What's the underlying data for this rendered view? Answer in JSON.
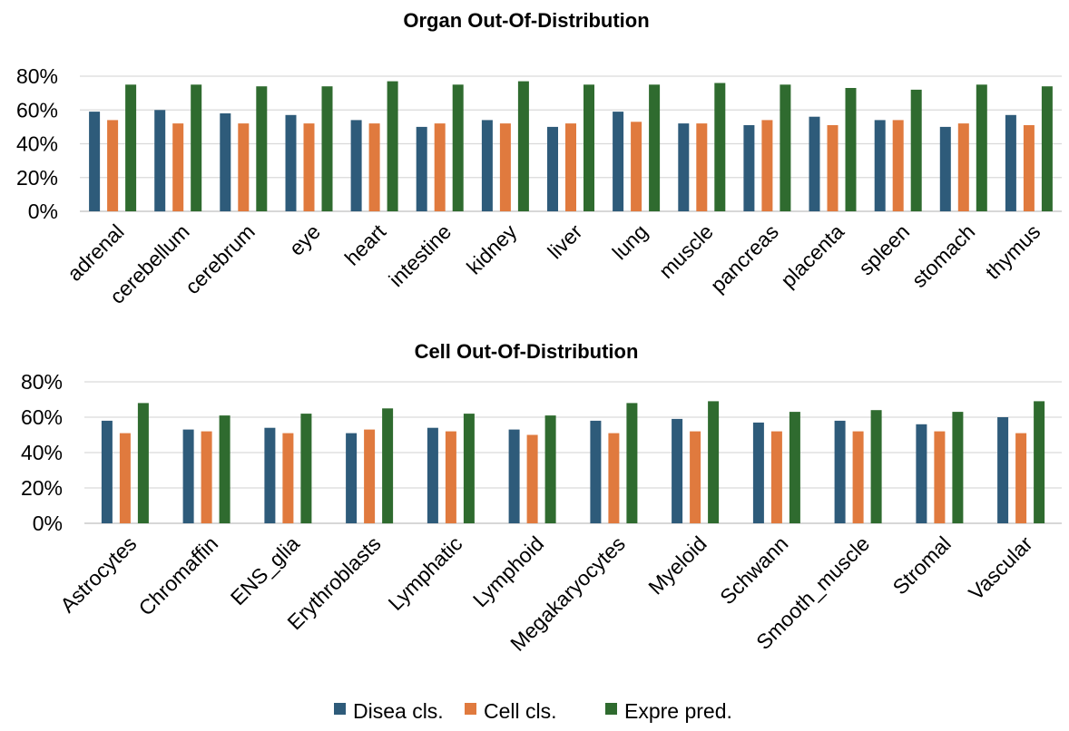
{
  "chart_data": [
    {
      "type": "bar",
      "title": "Organ Out-Of-Distribution",
      "xlabel": "",
      "ylabel": "",
      "ylim": [
        0,
        80
      ],
      "yticks": [
        "0%",
        "20%",
        "40%",
        "60%",
        "80%"
      ],
      "grid": true,
      "categories": [
        "adrenal",
        "cerebellum",
        "cerebrum",
        "eye",
        "heart",
        "intestine",
        "kidney",
        "liver",
        "lung",
        "muscle",
        "pancreas",
        "placenta",
        "spleen",
        "stomach",
        "thymus"
      ],
      "series": [
        {
          "name": "Disea cls.",
          "values": [
            59,
            60,
            58,
            57,
            54,
            50,
            54,
            50,
            59,
            52,
            51,
            56,
            54,
            50,
            57
          ]
        },
        {
          "name": "Cell cls.",
          "values": [
            54,
            52,
            52,
            52,
            52,
            52,
            52,
            52,
            53,
            52,
            54,
            51,
            54,
            52,
            51
          ]
        },
        {
          "name": "Expre pred.",
          "values": [
            75,
            75,
            74,
            74,
            77,
            75,
            77,
            75,
            75,
            76,
            75,
            73,
            72,
            75,
            74
          ]
        }
      ]
    },
    {
      "type": "bar",
      "title": "Cell Out-Of-Distribution",
      "xlabel": "",
      "ylabel": "",
      "ylim": [
        0,
        80
      ],
      "yticks": [
        "0%",
        "20%",
        "40%",
        "60%",
        "80%"
      ],
      "grid": true,
      "categories": [
        "Astrocytes",
        "Chromaffin",
        "ENS_glia",
        "Erythroblasts",
        "Lymphatic",
        "Lymphoid",
        "Megakaryocytes",
        "Myeloid",
        "Schwann",
        "Smooth_muscle",
        "Stromal",
        "Vascular"
      ],
      "series": [
        {
          "name": "Disea cls.",
          "values": [
            58,
            53,
            54,
            51,
            54,
            53,
            58,
            59,
            57,
            58,
            56,
            60
          ]
        },
        {
          "name": "Cell cls.",
          "values": [
            51,
            52,
            51,
            53,
            52,
            50,
            51,
            52,
            52,
            52,
            52,
            51
          ]
        },
        {
          "name": "Expre pred.",
          "values": [
            68,
            61,
            62,
            65,
            62,
            61,
            68,
            69,
            63,
            64,
            63,
            69
          ]
        }
      ]
    }
  ],
  "legend": {
    "placement": "bottom-center",
    "items": [
      {
        "label": "Disea cls.",
        "color": "#2e5b7a"
      },
      {
        "label": "Cell cls.",
        "color": "#e07a3e"
      },
      {
        "label": "Expre pred.",
        "color": "#2f6b2f"
      }
    ]
  },
  "colors": [
    "#2e5b7a",
    "#e07a3e",
    "#2f6b2f"
  ]
}
